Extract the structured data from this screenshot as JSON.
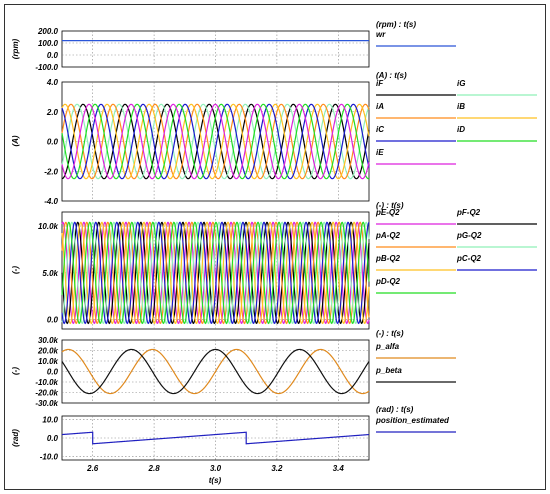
{
  "x_axis": {
    "label": "t(s)",
    "range": [
      2.5,
      3.5
    ],
    "ticks": [
      2.6,
      2.8,
      3.0,
      3.2,
      3.4
    ],
    "tick_labels": [
      "2.6",
      "2.8",
      "3.0",
      "3.2",
      "3.4"
    ]
  },
  "chart_data": [
    {
      "type": "line",
      "title": "(rpm) : t(s)",
      "ylabel": "(rpm)",
      "ylim": [
        -100,
        200
      ],
      "yticks": [
        200,
        100,
        0,
        -100
      ],
      "ytick_labels": [
        "200.0",
        "100.0",
        "0.0",
        "-100.0"
      ],
      "grid": true,
      "legend_placement": "right",
      "legend_columns": 1,
      "series": [
        {
          "name": "wr",
          "color": "#2a55d8",
          "kind": "const",
          "value": 120
        }
      ]
    },
    {
      "type": "line",
      "title": "(A) : t(s)",
      "ylabel": "(A)",
      "ylim": [
        -4,
        4
      ],
      "yticks": [
        4,
        2,
        0,
        -2,
        -4
      ],
      "ytick_labels": [
        "4.0",
        "2.0",
        "0.0",
        "-2.0",
        "-4.0"
      ],
      "grid": true,
      "legend_placement": "right",
      "legend_columns": 2,
      "series": [
        {
          "name": "iF",
          "color": "#000000",
          "kind": "sin",
          "amp": 2.5,
          "offset": 0,
          "freq": 7.3,
          "phase_deg": 180
        },
        {
          "name": "iG",
          "color": "#8ff0b8",
          "kind": "sin",
          "amp": 2.5,
          "offset": 0,
          "freq": 7.3,
          "phase_deg": 231
        },
        {
          "name": "iA",
          "color": "#ff8c1a",
          "kind": "sin",
          "amp": 2.5,
          "offset": 0,
          "freq": 7.3,
          "phase_deg": -77
        },
        {
          "name": "iB",
          "color": "#ffc020",
          "kind": "sin",
          "amp": 2.5,
          "offset": 0,
          "freq": 7.3,
          "phase_deg": -26
        },
        {
          "name": "iC",
          "color": "#1a1acc",
          "kind": "sin",
          "amp": 2.5,
          "offset": 0,
          "freq": 7.3,
          "phase_deg": 26
        },
        {
          "name": "iD",
          "color": "#22dd22",
          "kind": "sin",
          "amp": 2.5,
          "offset": 0,
          "freq": 7.3,
          "phase_deg": 77
        },
        {
          "name": "iE",
          "color": "#dd22dd",
          "kind": "sin",
          "amp": 2.5,
          "offset": 0,
          "freq": 7.3,
          "phase_deg": 128
        }
      ]
    },
    {
      "type": "line",
      "title": "(-) : t(s)",
      "ylabel": "(-)",
      "ylim": [
        -1000,
        11500
      ],
      "yticks": [
        10000,
        5000,
        0
      ],
      "ytick_labels": [
        "10.0k",
        "5.0k",
        "0.0"
      ],
      "grid": true,
      "legend_placement": "right",
      "legend_columns": 2,
      "series": [
        {
          "name": "pE-Q2",
          "color": "#dd22dd",
          "kind": "sin",
          "amp": 5400,
          "offset": 5000,
          "freq": 14.6,
          "phase_deg": 256
        },
        {
          "name": "pF-Q2",
          "color": "#000000",
          "kind": "sin",
          "amp": 5400,
          "offset": 5000,
          "freq": 14.6,
          "phase_deg": 0
        },
        {
          "name": "pA-Q2",
          "color": "#ff8c1a",
          "kind": "sin",
          "amp": 5400,
          "offset": 5000,
          "freq": 14.6,
          "phase_deg": 206
        },
        {
          "name": "pG-Q2",
          "color": "#8ff0b8",
          "kind": "sin",
          "amp": 5400,
          "offset": 5000,
          "freq": 14.6,
          "phase_deg": 102
        },
        {
          "name": "pB-Q2",
          "color": "#ffc020",
          "kind": "sin",
          "amp": 5400,
          "offset": 5000,
          "freq": 14.6,
          "phase_deg": 308
        },
        {
          "name": "pC-Q2",
          "color": "#1a1acc",
          "kind": "sin",
          "amp": 5400,
          "offset": 5000,
          "freq": 14.6,
          "phase_deg": 52
        },
        {
          "name": "pD-Q2",
          "color": "#22dd22",
          "kind": "sin",
          "amp": 5400,
          "offset": 5000,
          "freq": 14.6,
          "phase_deg": 154
        }
      ]
    },
    {
      "type": "line",
      "title": "(-) : t(s)",
      "ylabel": "(-)",
      "ylim": [
        -30000,
        30000
      ],
      "yticks": [
        30000,
        20000,
        10000,
        0,
        -10000,
        -20000,
        -30000
      ],
      "ytick_labels": [
        "30.0k",
        "20.0k",
        "10.0k",
        "0.0",
        "-10.0k",
        "-20.0k",
        "-30.0k"
      ],
      "grid": true,
      "legend_placement": "right",
      "legend_columns": 1,
      "series": [
        {
          "name": "p_alfa",
          "color": "#e08a1e",
          "kind": "sin",
          "amp": 21000,
          "offset": 0,
          "freq": 3.65,
          "phase_deg": 18
        },
        {
          "name": "p_beta",
          "color": "#111111",
          "kind": "sin",
          "amp": 21000,
          "offset": 0,
          "freq": 3.65,
          "phase_deg": 108
        }
      ]
    },
    {
      "type": "line",
      "title": "(rad) : t(s)",
      "ylabel": "(rad)",
      "ylim": [
        -12,
        12
      ],
      "yticks": [
        10,
        0,
        -10
      ],
      "ytick_labels": [
        "10.0",
        "0.0",
        "-10.0"
      ],
      "grid": true,
      "legend_placement": "right",
      "legend_columns": 1,
      "series": [
        {
          "name": "position_estimated",
          "color": "#2020c0",
          "kind": "saw",
          "low": -3.14,
          "high": 3.14,
          "t0": 2.6,
          "period": 0.5
        }
      ]
    }
  ]
}
